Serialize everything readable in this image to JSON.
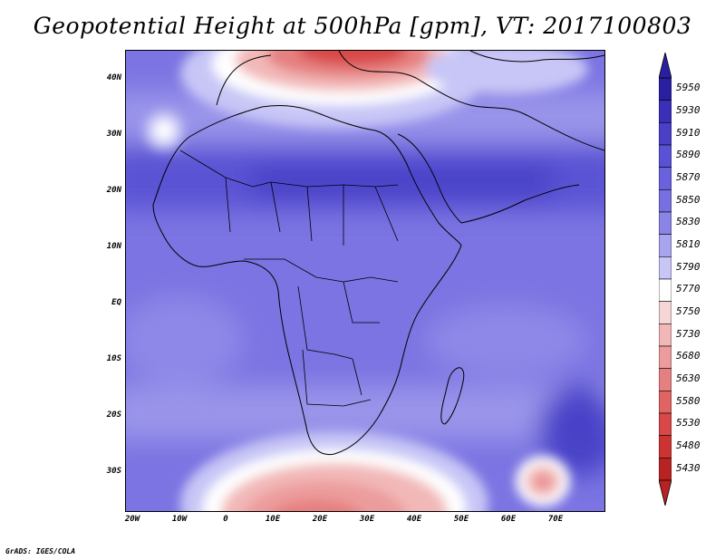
{
  "title": "Geopotential Height at 500hPa [gpm], VT: 2017100803",
  "lat_labels": [
    "40N",
    "30N",
    "20N",
    "10N",
    "EQ",
    "10S",
    "20S",
    "30S"
  ],
  "lon_labels": [
    "20W",
    "10W",
    "0",
    "10E",
    "20E",
    "30E",
    "40E",
    "50E",
    "60E",
    "70E"
  ],
  "colorbar": {
    "labels": [
      "5950",
      "5930",
      "5910",
      "5890",
      "5870",
      "5850",
      "5830",
      "5810",
      "5790",
      "5770",
      "5750",
      "5730",
      "5680",
      "5630",
      "5580",
      "5530",
      "5480",
      "5430"
    ],
    "colors": [
      "#2a1fa0",
      "#3a30b8",
      "#4a40c8",
      "#5a52d4",
      "#6a62dc",
      "#7870e0",
      "#8a84e6",
      "#a8a4ee",
      "#c8c6f6",
      "#ffffff",
      "#f6d6d6",
      "#f2b8b8",
      "#ec9c9c",
      "#e68080",
      "#e06464",
      "#d84848",
      "#cc3434",
      "#b82222"
    ]
  },
  "credit": "GrADS: IGES/COLA"
}
